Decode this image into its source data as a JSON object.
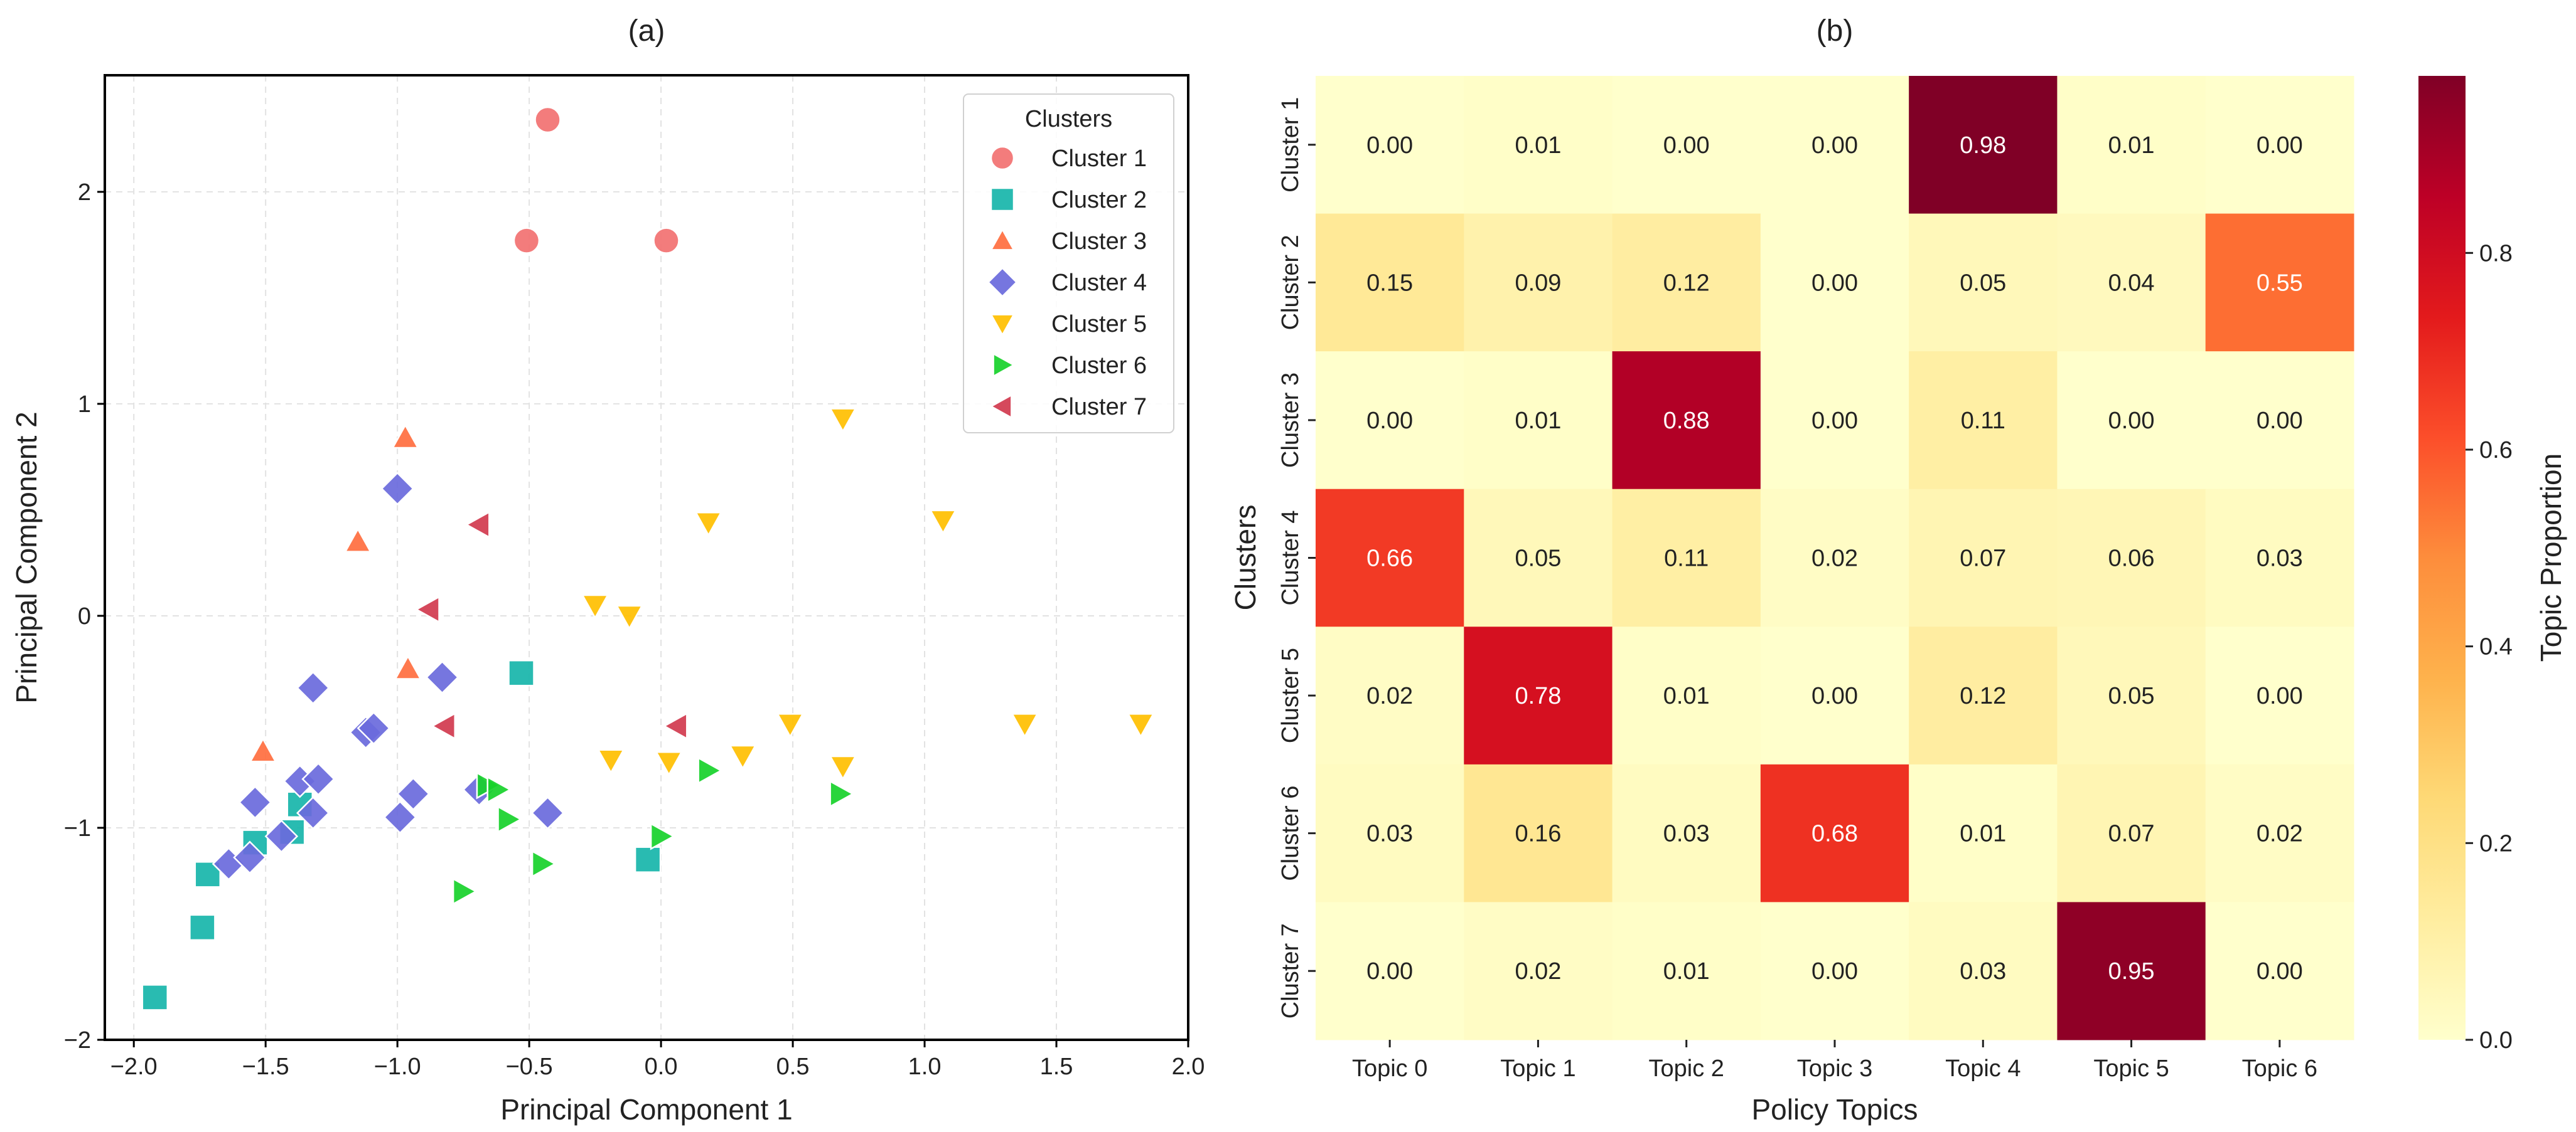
{
  "chart_data": [
    {
      "type": "scatter",
      "title": "(a)",
      "xlabel": "Principal Component 1",
      "ylabel": "Principal Component 2",
      "xlim": [
        -2.11,
        2.0
      ],
      "ylim": [
        -2.0,
        2.55
      ],
      "xticks": [
        -2.0,
        -1.5,
        -1.0,
        -0.5,
        0.0,
        0.5,
        1.0,
        1.5,
        2.0
      ],
      "xtick_labels": [
        "−2.0",
        "−1.5",
        "−1.0",
        "−0.5",
        "0.0",
        "0.5",
        "1.0",
        "1.5",
        "2.0"
      ],
      "yticks": [
        -2,
        -1,
        0,
        1,
        2
      ],
      "ytick_labels": [
        "−2",
        "−1",
        "0",
        "1",
        "2"
      ],
      "grid": true,
      "legend": {
        "title": "Clusters",
        "placement": "top-right"
      },
      "series": [
        {
          "name": "Cluster 1",
          "marker": "circle",
          "color": "#f27171",
          "points": [
            [
              -0.43,
              2.34
            ],
            [
              -0.51,
              1.77
            ],
            [
              0.02,
              1.77
            ]
          ]
        },
        {
          "name": "Cluster 2",
          "marker": "square",
          "color": "#17b5aa",
          "points": [
            [
              -0.53,
              -0.27
            ],
            [
              -0.05,
              -1.15
            ],
            [
              -1.92,
              -1.8
            ],
            [
              -1.74,
              -1.47
            ],
            [
              -1.72,
              -1.22
            ],
            [
              -1.54,
              -1.07
            ],
            [
              -1.4,
              -1.02
            ],
            [
              -1.37,
              -0.89
            ]
          ]
        },
        {
          "name": "Cluster 3",
          "marker": "triangle-up",
          "color": "#ff6e3f",
          "points": [
            [
              -0.97,
              0.84
            ],
            [
              -1.15,
              0.35
            ],
            [
              -0.96,
              -0.25
            ],
            [
              -1.51,
              -0.64
            ]
          ]
        },
        {
          "name": "Cluster 4",
          "marker": "diamond",
          "color": "#6a6adc",
          "points": [
            [
              -1.0,
              0.6
            ],
            [
              -1.32,
              -0.34
            ],
            [
              -0.83,
              -0.29
            ],
            [
              -1.12,
              -0.55
            ],
            [
              -1.09,
              -0.53
            ],
            [
              -1.37,
              -0.78
            ],
            [
              -1.3,
              -0.77
            ],
            [
              -1.54,
              -0.88
            ],
            [
              -0.94,
              -0.84
            ],
            [
              -1.32,
              -0.93
            ],
            [
              -0.99,
              -0.95
            ],
            [
              -0.69,
              -0.82
            ],
            [
              -0.43,
              -0.93
            ],
            [
              -1.44,
              -1.04
            ],
            [
              -1.64,
              -1.17
            ],
            [
              -1.56,
              -1.14
            ]
          ]
        },
        {
          "name": "Cluster 5",
          "marker": "triangle-down",
          "color": "#ffbf00",
          "points": [
            [
              0.69,
              0.93
            ],
            [
              0.18,
              0.44
            ],
            [
              1.07,
              0.45
            ],
            [
              -0.25,
              0.05
            ],
            [
              -0.12,
              0.0
            ],
            [
              0.49,
              -0.51
            ],
            [
              1.38,
              -0.51
            ],
            [
              1.82,
              -0.51
            ],
            [
              -0.19,
              -0.68
            ],
            [
              0.03,
              -0.69
            ],
            [
              0.31,
              -0.66
            ],
            [
              0.69,
              -0.71
            ]
          ]
        },
        {
          "name": "Cluster 6",
          "marker": "triangle-right",
          "color": "#17d12a",
          "points": [
            [
              -0.66,
              -0.8
            ],
            [
              -0.62,
              -0.82
            ],
            [
              -0.58,
              -0.96
            ],
            [
              0.18,
              -0.73
            ],
            [
              0.68,
              -0.84
            ],
            [
              0.0,
              -1.04
            ],
            [
              -0.45,
              -1.17
            ],
            [
              -0.75,
              -1.3
            ]
          ]
        },
        {
          "name": "Cluster 7",
          "marker": "triangle-left",
          "color": "#d13a4e",
          "points": [
            [
              -0.69,
              0.43
            ],
            [
              -0.88,
              0.03
            ],
            [
              -0.82,
              -0.52
            ],
            [
              0.06,
              -0.52
            ]
          ]
        }
      ]
    },
    {
      "type": "heatmap",
      "title": "(b)",
      "xlabel": "Policy Topics",
      "ylabel": "Clusters",
      "colorbar_label": "Topic Proportion",
      "colormap": "YlOrRd",
      "vlim": [
        0.0,
        0.98
      ],
      "colorbar_ticks": [
        0.0,
        0.2,
        0.4,
        0.6,
        0.8
      ],
      "colorbar_tick_labels": [
        "0.0",
        "0.2",
        "0.4",
        "0.6",
        "0.8"
      ],
      "x_categories": [
        "Topic 0",
        "Topic 1",
        "Topic 2",
        "Topic 3",
        "Topic 4",
        "Topic 5",
        "Topic 6"
      ],
      "y_categories": [
        "Cluster 1",
        "Cluster 2",
        "Cluster 3",
        "Cluster 4",
        "Cluster 5",
        "Cluster 6",
        "Cluster 7"
      ],
      "values": [
        [
          0.0,
          0.01,
          0.0,
          0.0,
          0.98,
          0.01,
          0.0
        ],
        [
          0.15,
          0.09,
          0.12,
          0.0,
          0.05,
          0.04,
          0.55
        ],
        [
          0.0,
          0.01,
          0.88,
          0.0,
          0.11,
          0.0,
          0.0
        ],
        [
          0.66,
          0.05,
          0.11,
          0.02,
          0.07,
          0.06,
          0.03
        ],
        [
          0.02,
          0.78,
          0.01,
          0.0,
          0.12,
          0.05,
          0.0
        ],
        [
          0.03,
          0.16,
          0.03,
          0.68,
          0.01,
          0.07,
          0.02
        ],
        [
          0.0,
          0.02,
          0.01,
          0.0,
          0.03,
          0.95,
          0.0
        ]
      ],
      "value_labels": [
        [
          "0.00",
          "0.01",
          "0.00",
          "0.00",
          "0.98",
          "0.01",
          "0.00"
        ],
        [
          "0.15",
          "0.09",
          "0.12",
          "0.00",
          "0.05",
          "0.04",
          "0.55"
        ],
        [
          "0.00",
          "0.01",
          "0.88",
          "0.00",
          "0.11",
          "0.00",
          "0.00"
        ],
        [
          "0.66",
          "0.05",
          "0.11",
          "0.02",
          "0.07",
          "0.06",
          "0.03"
        ],
        [
          "0.02",
          "0.78",
          "0.01",
          "0.00",
          "0.12",
          "0.05",
          "0.00"
        ],
        [
          "0.03",
          "0.16",
          "0.03",
          "0.68",
          "0.01",
          "0.07",
          "0.02"
        ],
        [
          "0.00",
          "0.02",
          "0.01",
          "0.00",
          "0.03",
          "0.95",
          "0.00"
        ]
      ]
    }
  ]
}
